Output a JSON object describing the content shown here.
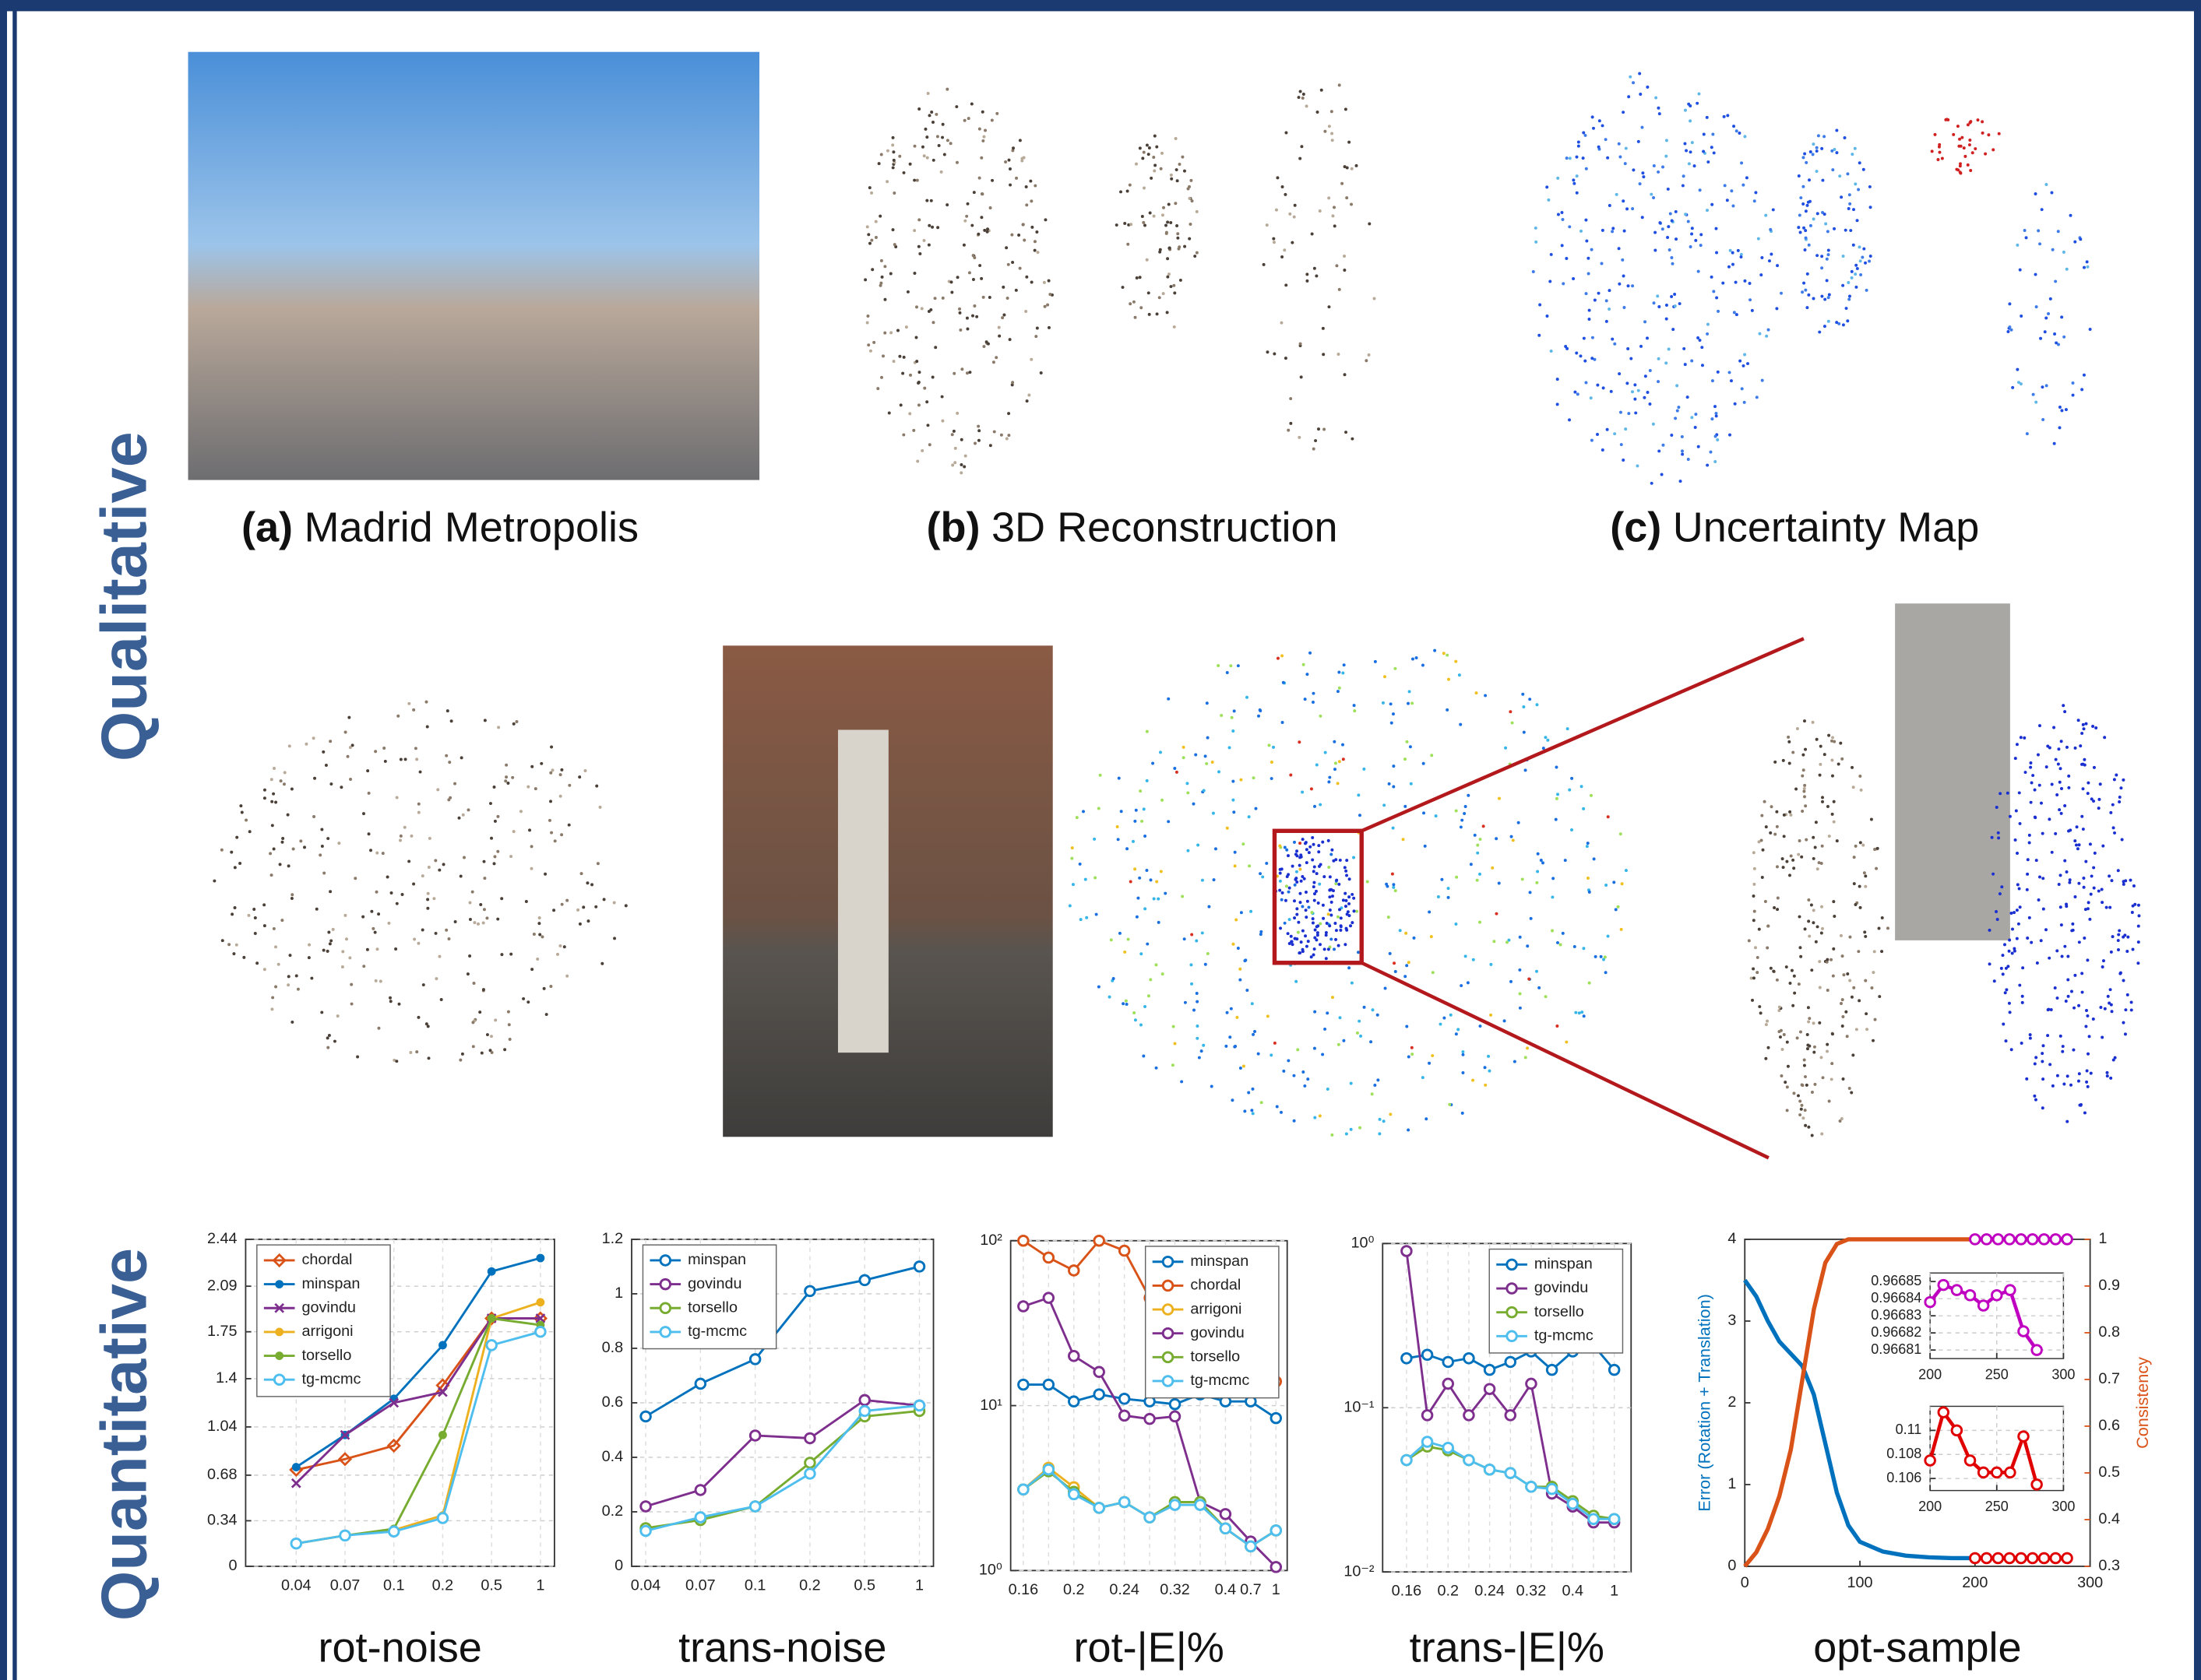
{
  "side_labels": [
    "Qualitative",
    "Quantitative"
  ],
  "captions": [
    {
      "tag": "(a)",
      "text": "Madrid Metropolis"
    },
    {
      "tag": "(b)",
      "text": "3D Reconstruction"
    },
    {
      "tag": "(c)",
      "text": "Uncertainty Map"
    }
  ],
  "chart_data": [
    {
      "type": "line",
      "xlabel": "rot-noise",
      "grid": true,
      "legend": "upper left",
      "categories": [
        "0.04",
        "0.07",
        "0.1",
        "0.2",
        "0.5",
        "1"
      ],
      "ylim": [
        0,
        2.44
      ],
      "yticks": [
        0,
        0.34,
        0.68,
        1.04,
        1.4,
        1.75,
        2.09,
        2.44
      ],
      "series": [
        {
          "name": "chordal",
          "color": "#d95319",
          "marker": "d",
          "values": [
            0.72,
            0.8,
            0.9,
            1.35,
            1.85,
            1.85
          ]
        },
        {
          "name": "minspan",
          "color": "#0072bd",
          "marker": "dot",
          "values": [
            0.74,
            0.98,
            1.25,
            1.65,
            2.2,
            2.3
          ]
        },
        {
          "name": "govindu",
          "color": "#7e2f8e",
          "marker": "x",
          "values": [
            0.62,
            0.98,
            1.22,
            1.3,
            1.85,
            1.85
          ]
        },
        {
          "name": "arrigoni",
          "color": "#edb120",
          "marker": "dot",
          "values": [
            0.17,
            0.23,
            0.27,
            0.38,
            1.85,
            1.97
          ]
        },
        {
          "name": "torsello",
          "color": "#77ac30",
          "marker": "dot",
          "values": [
            0.17,
            0.23,
            0.28,
            0.98,
            1.85,
            1.8
          ]
        },
        {
          "name": "tg-mcmc",
          "color": "#4dbeee",
          "marker": "o",
          "values": [
            0.17,
            0.23,
            0.26,
            0.36,
            1.65,
            1.75
          ]
        }
      ]
    },
    {
      "type": "line",
      "xlabel": "trans-noise",
      "grid": true,
      "legend": "upper left",
      "categories": [
        "0.04",
        "0.07",
        "0.1",
        "0.2",
        "0.5",
        "1"
      ],
      "ylim": [
        0,
        1.2
      ],
      "yticks": [
        0,
        0.2,
        0.4,
        0.6,
        0.8,
        1,
        1.2
      ],
      "series": [
        {
          "name": "minspan",
          "color": "#0072bd",
          "marker": "o",
          "values": [
            0.55,
            0.67,
            0.76,
            1.01,
            1.05,
            1.1
          ]
        },
        {
          "name": "govindu",
          "color": "#7e2f8e",
          "marker": "o",
          "values": [
            0.22,
            0.28,
            0.48,
            0.47,
            0.61,
            0.59
          ]
        },
        {
          "name": "torsello",
          "color": "#77ac30",
          "marker": "o",
          "values": [
            0.14,
            0.17,
            0.22,
            0.38,
            0.55,
            0.57
          ]
        },
        {
          "name": "tg-mcmc",
          "color": "#4dbeee",
          "marker": "o",
          "values": [
            0.13,
            0.18,
            0.22,
            0.34,
            0.57,
            0.59
          ]
        }
      ]
    },
    {
      "type": "line",
      "xlabel": "rot-|E|%",
      "grid": true,
      "legend": "upper right",
      "log_y": true,
      "categories": [
        "0.16",
        null,
        "0.2",
        null,
        "0.24",
        null,
        "0.32",
        null,
        "0.4",
        "0.7",
        "1"
      ],
      "ylim": [
        1,
        100
      ],
      "yticks": [
        {
          "value": 1,
          "label": "10⁰"
        },
        {
          "value": 10,
          "label": "10¹"
        },
        {
          "value": 100,
          "label": "10²"
        }
      ],
      "series": [
        {
          "name": "minspan",
          "color": "#0072bd",
          "marker": "o",
          "values": [
            13.4,
            13.4,
            10.6,
            11.7,
            11,
            10.6,
            10.2,
            11.7,
            10.6,
            10.6,
            8.4
          ]
        },
        {
          "name": "chordal",
          "color": "#d95319",
          "marker": "o",
          "values": [
            100,
            79,
            66,
            100,
            87,
            45,
            null,
            null,
            null,
            null,
            14
          ]
        },
        {
          "name": "arrigoni",
          "color": "#edb120",
          "marker": "o",
          "values": [
            3.1,
            4.2,
            3.2,
            2.4,
            2.6,
            2.1,
            2.6,
            2.6,
            1.8,
            1.4,
            1.75
          ]
        },
        {
          "name": "govindu",
          "color": "#7e2f8e",
          "marker": "o",
          "values": [
            40,
            45,
            20,
            16,
            8.7,
            8.3,
            8.6,
            2.6,
            2.2,
            1.5,
            1.05
          ]
        },
        {
          "name": "torsello",
          "color": "#77ac30",
          "marker": "o",
          "values": [
            3.1,
            4,
            3,
            2.4,
            2.6,
            2.1,
            2.6,
            2.6,
            1.8,
            1.4,
            1.75
          ]
        },
        {
          "name": "tg-mcmc",
          "color": "#4dbeee",
          "marker": "o",
          "values": [
            3.1,
            4.1,
            2.9,
            2.4,
            2.6,
            2.1,
            2.5,
            2.5,
            1.8,
            1.4,
            1.75
          ]
        }
      ]
    },
    {
      "type": "line",
      "xlabel": "trans-|E|%",
      "grid": true,
      "legend": "upper right",
      "log_y": true,
      "categories": [
        "0.16",
        null,
        "0.2",
        null,
        "0.24",
        null,
        "0.32",
        null,
        "0.4",
        null,
        "1"
      ],
      "ylim": [
        0.01,
        1
      ],
      "yticks": [
        {
          "value": 0.01,
          "label": "10⁻²"
        },
        {
          "value": 0.1,
          "label": "10⁻¹"
        },
        {
          "value": 1,
          "label": "10⁰"
        }
      ],
      "series": [
        {
          "name": "minspan",
          "color": "#0072bd",
          "marker": "o",
          "values": [
            0.2,
            0.21,
            0.19,
            0.2,
            0.17,
            0.19,
            0.22,
            0.17,
            0.22,
            0.24,
            0.17
          ]
        },
        {
          "name": "govindu",
          "color": "#7e2f8e",
          "marker": "o",
          "values": [
            0.9,
            0.09,
            0.14,
            0.09,
            0.13,
            0.09,
            0.14,
            0.03,
            0.025,
            0.02,
            0.02
          ]
        },
        {
          "name": "torsello",
          "color": "#77ac30",
          "marker": "o",
          "values": [
            0.048,
            0.058,
            0.055,
            0.048,
            0.042,
            0.04,
            0.033,
            0.033,
            0.027,
            0.022,
            0.021
          ]
        },
        {
          "name": "tg-mcmc",
          "color": "#4dbeee",
          "marker": "o",
          "values": [
            0.048,
            0.062,
            0.057,
            0.048,
            0.042,
            0.04,
            0.033,
            0.032,
            0.026,
            0.021,
            0.021
          ]
        }
      ]
    },
    {
      "type": "line",
      "xlabel": "opt-sample",
      "ylabel": "Error (Rotation + Translation)",
      "y2label": "Consistency",
      "xlim": [
        0,
        300
      ],
      "xticks": [
        0,
        100,
        200,
        300
      ],
      "ylim": [
        0,
        4
      ],
      "yticks": [
        0,
        1,
        2,
        3,
        4
      ],
      "y2lim": [
        0.3,
        1
      ],
      "y2ticks": [
        0.3,
        0.4,
        0.5,
        0.6,
        0.7,
        0.8,
        0.9,
        1
      ],
      "series": [
        {
          "color": "#0072bd",
          "width": 3,
          "x": [
            0,
            10,
            20,
            30,
            40,
            50,
            60,
            70,
            80,
            90,
            100,
            120,
            140,
            160,
            180,
            200,
            250,
            280
          ],
          "values": [
            3.5,
            3.3,
            3.0,
            2.75,
            2.6,
            2.45,
            2.1,
            1.5,
            0.9,
            0.5,
            0.3,
            0.18,
            0.13,
            0.11,
            0.1,
            0.1,
            0.1,
            0.1
          ]
        },
        {
          "color": "#d95319",
          "width": 3,
          "axis": "y2",
          "x": [
            0,
            10,
            20,
            30,
            40,
            50,
            60,
            70,
            80,
            90,
            100,
            150,
            200,
            250,
            280
          ],
          "values": [
            0.3,
            0.33,
            0.38,
            0.45,
            0.55,
            0.7,
            0.85,
            0.95,
            0.99,
            1,
            1,
            1,
            1,
            1,
            1
          ]
        },
        {
          "color": "#c000c0",
          "marker": "o",
          "nolines": true,
          "axis": "y2",
          "x": [
            200,
            210,
            220,
            230,
            240,
            250,
            260,
            270,
            280
          ],
          "values": [
            1,
            1,
            1,
            1,
            1,
            1,
            1,
            1,
            1
          ]
        },
        {
          "color": "#e00000",
          "marker": "o",
          "nolines": true,
          "x": [
            200,
            210,
            220,
            230,
            240,
            250,
            260,
            270,
            280
          ],
          "values": [
            0.1,
            0.1,
            0.1,
            0.1,
            0.1,
            0.1,
            0.1,
            0.1,
            0.1
          ]
        }
      ],
      "insets": [
        {
          "xlim": [
            200,
            300
          ],
          "xticks": [
            200,
            250,
            300
          ],
          "ylim": [
            0.966805,
            0.966855
          ],
          "yticks": [
            0.96681,
            0.96682,
            0.96683,
            0.96684,
            0.96685
          ],
          "series": [
            {
              "color": "#c000c0",
              "marker": "o",
              "x": [
                200,
                210,
                220,
                230,
                240,
                250,
                260,
                270,
                280
              ],
              "values": [
                0.966838,
                0.966848,
                0.966845,
                0.966842,
                0.966836,
                0.966842,
                0.966845,
                0.966821,
                0.96681
              ]
            }
          ]
        },
        {
          "xlim": [
            200,
            300
          ],
          "xticks": [
            200,
            250,
            300
          ],
          "ylim": [
            0.105,
            0.112
          ],
          "yticks": [
            0.106,
            0.108,
            0.11
          ],
          "series": [
            {
              "color": "#e00000",
              "marker": "o",
              "x": [
                200,
                210,
                220,
                230,
                240,
                250,
                260,
                270,
                280
              ],
              "values": [
                0.1075,
                0.1115,
                0.11,
                0.1075,
                0.1065,
                0.1065,
                0.1065,
                0.1095,
                0.1055
              ]
            }
          ]
        }
      ]
    }
  ]
}
